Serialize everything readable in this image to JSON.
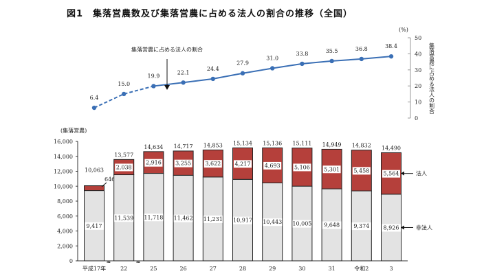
{
  "title": "図1　集落営農数及び集落営農に占める法人の割合の推移（全国）",
  "chart_data": [
    {
      "type": "line",
      "categories": [
        "平成17年",
        "22",
        "25",
        "26",
        "27",
        "28",
        "29",
        "30",
        "31",
        "令和2",
        "3"
      ],
      "values": [
        6.4,
        15.0,
        19.9,
        22.1,
        24.4,
        27.9,
        31.0,
        33.8,
        35.5,
        36.8,
        38.4
      ],
      "value_labels": [
        "6.4",
        "15.0",
        "19.9",
        "22.1",
        "24.4",
        "27.9",
        "31.0",
        "33.8",
        "35.5",
        "36.8",
        "38.4"
      ],
      "dashed_until_index": 2,
      "annotation": "集落営農に占める法人の割合",
      "ylabel": "集落営農に占める法人の割合",
      "yunit": "(%)",
      "ylim": [
        0,
        50
      ],
      "yticks": [
        "0",
        "10",
        "20",
        "30",
        "40",
        "50"
      ],
      "y_axis_position": "right",
      "color": "#3a6fb5"
    },
    {
      "type": "bar",
      "stacked": true,
      "categories": [
        "平成17年",
        "22",
        "25",
        "26",
        "27",
        "28",
        "29",
        "30",
        "31",
        "令和2",
        "3"
      ],
      "series": [
        {
          "name": "非法人",
          "values": [
            9417,
            11539,
            11718,
            11462,
            11231,
            10917,
            10443,
            10005,
            9648,
            9374,
            8926
          ],
          "labels": [
            "9,417",
            "11,539",
            "11,718",
            "11,462",
            "11,231",
            "10,917",
            "10,443",
            "10,005",
            "9,648",
            "9,374",
            "8,926"
          ],
          "color": "#e3e3e3"
        },
        {
          "name": "法人",
          "values": [
            646,
            2038,
            2916,
            3255,
            3622,
            4217,
            4693,
            5106,
            5301,
            5458,
            5564
          ],
          "labels": [
            "646",
            "2,038",
            "2,916",
            "3,255",
            "3,622",
            "4,217",
            "4,693",
            "5,106",
            "5,301",
            "5,458",
            "5,564"
          ],
          "color": "#b5403b"
        }
      ],
      "totals": [
        "10,063",
        "13,577",
        "14,634",
        "14,717",
        "14,853",
        "15,134",
        "15,136",
        "15,111",
        "14,949",
        "14,832",
        "14,490"
      ],
      "totals_values": [
        10063,
        13577,
        14634,
        14717,
        14853,
        15134,
        15136,
        15111,
        14949,
        14832,
        14490
      ],
      "yunit": "(集落営農)",
      "ylim": [
        0,
        16000
      ],
      "yticks": [
        "0",
        "2,000",
        "4,000",
        "6,000",
        "8,000",
        "10,000",
        "12,000",
        "14,000",
        "16,000"
      ],
      "axis_breaks_after": [
        "平成17年",
        "22"
      ]
    }
  ]
}
